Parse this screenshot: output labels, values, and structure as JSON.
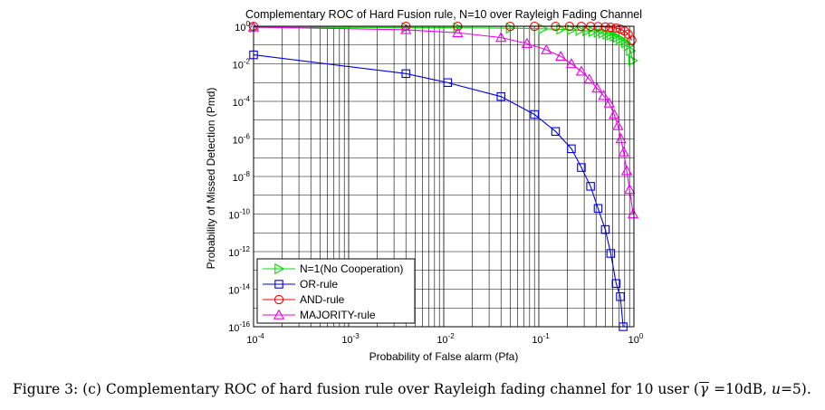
{
  "chart_data": {
    "type": "line",
    "title": "Complementary ROC of Hard Fusion rule, N=10 over Rayleigh Fading Channel",
    "xlabel": "Probability of False alarm (Pfa)",
    "ylabel": "Probability of Missed Detection (Pmd)",
    "xscale": "log",
    "yscale": "log",
    "xlim": [
      0.0001,
      1
    ],
    "ylim": [
      1e-16,
      1
    ],
    "grid": true,
    "legend_position": "bottom-left",
    "x_ticks": [
      {
        "base": "10",
        "exp": "-4"
      },
      {
        "base": "10",
        "exp": "-3"
      },
      {
        "base": "10",
        "exp": "-2"
      },
      {
        "base": "10",
        "exp": "-1"
      },
      {
        "base": "10",
        "exp": "0"
      }
    ],
    "y_ticks": [
      {
        "base": "10",
        "exp": "0"
      },
      {
        "base": "10",
        "exp": "-2"
      },
      {
        "base": "10",
        "exp": "-4"
      },
      {
        "base": "10",
        "exp": "-6"
      },
      {
        "base": "10",
        "exp": "-8"
      },
      {
        "base": "10",
        "exp": "-10"
      },
      {
        "base": "10",
        "exp": "-12"
      },
      {
        "base": "10",
        "exp": "-14"
      },
      {
        "base": "10",
        "exp": "-16"
      }
    ],
    "series": [
      {
        "name": "N=1(No Cooperation)",
        "color": "#00dd00",
        "marker": "triangle-right",
        "x": [
          0.0001,
          0.004,
          0.014,
          0.05,
          0.11,
          0.17,
          0.22,
          0.27,
          0.32,
          0.37,
          0.42,
          0.47,
          0.52,
          0.57,
          0.62,
          0.67,
          0.72,
          0.77,
          0.82,
          0.87,
          0.92,
          0.97
        ],
        "y": [
          0.88,
          0.86,
          0.84,
          0.78,
          0.73,
          0.69,
          0.65,
          0.6,
          0.56,
          0.52,
          0.47,
          0.43,
          0.38,
          0.34,
          0.3,
          0.26,
          0.21,
          0.17,
          0.13,
          0.09,
          0.05,
          0.015
        ]
      },
      {
        "name": "OR-rule",
        "color": "#0000ee",
        "marker": "square",
        "x": [
          0.0001,
          0.004,
          0.011,
          0.04,
          0.09,
          0.15,
          0.22,
          0.28,
          0.35,
          0.42,
          0.5,
          0.57,
          0.65,
          0.72,
          0.77
        ],
        "y": [
          0.03,
          0.003,
          0.001,
          0.00018,
          2e-05,
          2.5e-06,
          3e-07,
          3e-08,
          3e-09,
          2e-10,
          1.5e-11,
          8e-13,
          2e-14,
          4e-15,
          1e-16
        ]
      },
      {
        "name": "AND-rule",
        "color": "#ff0000",
        "marker": "circle",
        "x": [
          0.0001,
          0.004,
          0.014,
          0.05,
          0.09,
          0.15,
          0.21,
          0.28,
          0.35,
          0.42,
          0.5,
          0.57,
          0.65,
          0.72,
          0.8,
          0.87,
          0.95
        ],
        "y": [
          0.99,
          0.99,
          0.99,
          0.99,
          0.99,
          0.99,
          0.99,
          0.98,
          0.97,
          0.96,
          0.92,
          0.88,
          0.8,
          0.7,
          0.55,
          0.38,
          0.18
        ]
      },
      {
        "name": "MAJORITY-rule",
        "color": "#ee00ee",
        "marker": "triangle-up",
        "x": [
          0.0001,
          0.004,
          0.014,
          0.04,
          0.075,
          0.12,
          0.17,
          0.22,
          0.28,
          0.34,
          0.41,
          0.48,
          0.55,
          0.62,
          0.68,
          0.73,
          0.78,
          0.84,
          0.9,
          0.98
        ],
        "y": [
          0.9,
          0.65,
          0.45,
          0.25,
          0.12,
          0.055,
          0.025,
          0.01,
          0.004,
          0.0015,
          0.0005,
          0.0002,
          8e-05,
          2e-05,
          5e-06,
          1e-06,
          2e-07,
          2e-08,
          2e-09,
          1e-10
        ]
      }
    ]
  },
  "caption": {
    "prefix": "Figure 3: (c) Complementary ROC of hard fusion rule over Rayleigh fading channel for 10 user (",
    "gamma": "γ",
    "mid": " =10dB, ",
    "u_var": "u",
    "suffix": "=5)."
  }
}
